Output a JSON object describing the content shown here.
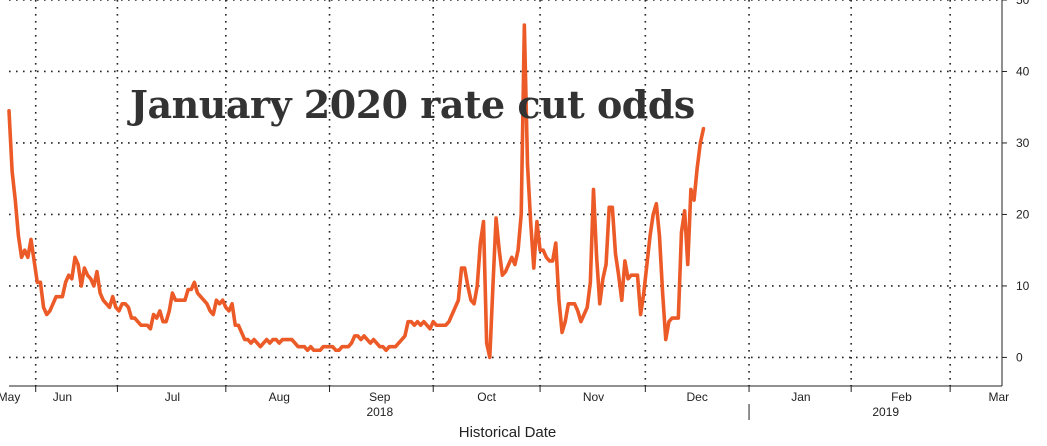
{
  "chart_data": {
    "type": "line",
    "title": "January 2020 rate cut odds",
    "xlabel": "Historical Date",
    "ylabel": "",
    "ylim": [
      -4,
      50
    ],
    "yticks": [
      0,
      10,
      20,
      30,
      40,
      50
    ],
    "xlim": [
      0,
      316
    ],
    "grid": true,
    "colors": {
      "series": "#ec5a27",
      "grid": "#222222",
      "text": "#222222"
    },
    "month_ticks": [
      {
        "label": "May",
        "x": 0
      },
      {
        "label": "Jun",
        "x": 17
      },
      {
        "label": "Jul",
        "x": 52
      },
      {
        "label": "Aug",
        "x": 86
      },
      {
        "label": "Sep",
        "x": 118
      },
      {
        "label": "Oct",
        "x": 152
      },
      {
        "label": "Nov",
        "x": 186
      },
      {
        "label": "Dec",
        "x": 219
      },
      {
        "label": "Jan",
        "x": 252
      },
      {
        "label": "Feb",
        "x": 284
      },
      {
        "label": "Mar",
        "x": 315
      }
    ],
    "year_labels": [
      {
        "label": "2018",
        "x": 118
      },
      {
        "label": "2019",
        "x": 279
      }
    ],
    "series": [
      {
        "name": "",
        "points": [
          [
            0,
            34.5
          ],
          [
            1,
            26
          ],
          [
            2,
            22
          ],
          [
            3,
            17
          ],
          [
            4,
            14
          ],
          [
            5,
            15
          ],
          [
            6,
            14
          ],
          [
            7,
            16.5
          ],
          [
            8,
            13.5
          ],
          [
            9,
            10.5
          ],
          [
            10,
            10.5
          ],
          [
            11,
            7
          ],
          [
            12,
            6
          ],
          [
            13,
            6.5
          ],
          [
            14,
            7.5
          ],
          [
            15,
            8.5
          ],
          [
            16,
            8.5
          ],
          [
            17,
            8.5
          ],
          [
            18,
            10.5
          ],
          [
            19,
            11.5
          ],
          [
            20,
            11
          ],
          [
            21,
            14
          ],
          [
            22,
            13
          ],
          [
            23,
            10
          ],
          [
            24,
            12.5
          ],
          [
            25,
            11.5
          ],
          [
            26,
            11
          ],
          [
            27,
            10
          ],
          [
            28,
            12
          ],
          [
            29,
            9
          ],
          [
            30,
            8
          ],
          [
            31,
            7.5
          ],
          [
            32,
            7
          ],
          [
            33,
            8.5
          ],
          [
            34,
            7
          ],
          [
            35,
            6.5
          ],
          [
            36,
            7.5
          ],
          [
            37,
            7.5
          ],
          [
            38,
            7
          ],
          [
            39,
            5.5
          ],
          [
            40,
            5.5
          ],
          [
            41,
            5
          ],
          [
            42,
            4.5
          ],
          [
            43,
            4.5
          ],
          [
            44,
            4.5
          ],
          [
            45,
            4
          ],
          [
            46,
            6
          ],
          [
            47,
            5.5
          ],
          [
            48,
            6.5
          ],
          [
            49,
            5
          ],
          [
            50,
            5
          ],
          [
            51,
            6.5
          ],
          [
            52,
            9
          ],
          [
            53,
            8
          ],
          [
            54,
            8
          ],
          [
            55,
            8
          ],
          [
            56,
            8
          ],
          [
            57,
            9.5
          ],
          [
            58,
            9.5
          ],
          [
            59,
            10.5
          ],
          [
            60,
            9
          ],
          [
            61,
            8.5
          ],
          [
            62,
            8
          ],
          [
            63,
            7.5
          ],
          [
            64,
            6.5
          ],
          [
            65,
            6
          ],
          [
            66,
            8
          ],
          [
            67,
            7.5
          ],
          [
            68,
            8
          ],
          [
            69,
            7
          ],
          [
            70,
            6.5
          ],
          [
            71,
            7.5
          ],
          [
            72,
            4.5
          ],
          [
            73,
            4.5
          ],
          [
            74,
            3.5
          ],
          [
            75,
            2.5
          ],
          [
            76,
            2.5
          ],
          [
            77,
            2
          ],
          [
            78,
            2.5
          ],
          [
            79,
            2
          ],
          [
            80,
            1.5
          ],
          [
            81,
            2
          ],
          [
            82,
            2.5
          ],
          [
            83,
            2
          ],
          [
            84,
            2.5
          ],
          [
            85,
            2.5
          ],
          [
            86,
            2
          ],
          [
            87,
            2.5
          ],
          [
            88,
            2.5
          ],
          [
            89,
            2.5
          ],
          [
            90,
            2.5
          ],
          [
            91,
            2
          ],
          [
            92,
            1.5
          ],
          [
            93,
            1.5
          ],
          [
            94,
            1.5
          ],
          [
            95,
            1
          ],
          [
            96,
            1.5
          ],
          [
            97,
            1
          ],
          [
            98,
            1
          ],
          [
            99,
            1
          ],
          [
            100,
            1.5
          ],
          [
            101,
            1.5
          ],
          [
            102,
            1.5
          ],
          [
            103,
            1.5
          ],
          [
            104,
            1
          ],
          [
            105,
            1
          ],
          [
            106,
            1.5
          ],
          [
            107,
            1.5
          ],
          [
            108,
            1.5
          ],
          [
            109,
            2
          ],
          [
            110,
            3
          ],
          [
            111,
            3
          ],
          [
            112,
            2.5
          ],
          [
            113,
            3
          ],
          [
            114,
            2.5
          ],
          [
            115,
            2
          ],
          [
            116,
            2.5
          ],
          [
            117,
            2
          ],
          [
            118,
            1.5
          ],
          [
            119,
            1.5
          ],
          [
            120,
            1
          ],
          [
            121,
            1.5
          ],
          [
            122,
            1.5
          ],
          [
            123,
            1.5
          ],
          [
            124,
            2
          ],
          [
            125,
            2.5
          ],
          [
            126,
            3
          ],
          [
            127,
            5
          ],
          [
            128,
            5
          ],
          [
            129,
            4.5
          ],
          [
            130,
            5
          ],
          [
            131,
            4.5
          ],
          [
            132,
            5
          ],
          [
            133,
            4.5
          ],
          [
            134,
            4
          ],
          [
            135,
            5
          ],
          [
            136,
            4.5
          ],
          [
            137,
            4.5
          ],
          [
            138,
            4.5
          ],
          [
            139,
            4.5
          ],
          [
            140,
            5
          ],
          [
            141,
            6
          ],
          [
            142,
            7
          ],
          [
            143,
            8
          ],
          [
            144,
            12.5
          ],
          [
            145,
            12.5
          ],
          [
            146,
            10
          ],
          [
            147,
            8
          ],
          [
            148,
            7.5
          ],
          [
            149,
            10
          ],
          [
            150,
            16
          ],
          [
            151,
            19
          ],
          [
            152,
            2
          ],
          [
            153,
            0
          ],
          [
            154,
            10
          ],
          [
            155,
            19.5
          ],
          [
            156,
            15
          ],
          [
            157,
            11.5
          ],
          [
            158,
            12
          ],
          [
            159,
            13
          ],
          [
            160,
            14
          ],
          [
            161,
            13
          ],
          [
            162,
            15
          ],
          [
            163,
            20
          ],
          [
            164,
            46.5
          ],
          [
            165,
            27
          ],
          [
            166,
            19
          ],
          [
            167,
            12.5
          ],
          [
            168,
            19
          ],
          [
            169,
            15
          ],
          [
            170,
            15
          ],
          [
            171,
            14
          ],
          [
            172,
            13.5
          ],
          [
            173,
            13.5
          ],
          [
            174,
            16
          ],
          [
            175,
            8
          ],
          [
            176,
            3.5
          ],
          [
            177,
            5
          ],
          [
            178,
            7.5
          ],
          [
            179,
            7.5
          ],
          [
            180,
            7.5
          ],
          [
            181,
            6.5
          ],
          [
            182,
            5
          ],
          [
            183,
            6
          ],
          [
            184,
            7
          ],
          [
            185,
            10.5
          ],
          [
            186,
            23.5
          ],
          [
            187,
            14
          ],
          [
            188,
            7.5
          ],
          [
            189,
            11
          ],
          [
            190,
            13
          ],
          [
            191,
            21
          ],
          [
            192,
            21
          ],
          [
            193,
            14.5
          ],
          [
            194,
            11.5
          ],
          [
            195,
            8
          ],
          [
            196,
            13.5
          ],
          [
            197,
            11
          ],
          [
            198,
            11.5
          ],
          [
            199,
            11.5
          ],
          [
            200,
            11.5
          ],
          [
            201,
            6
          ],
          [
            202,
            9
          ],
          [
            203,
            13
          ],
          [
            204,
            17
          ],
          [
            205,
            20
          ],
          [
            206,
            21.5
          ],
          [
            207,
            17
          ],
          [
            208,
            9
          ],
          [
            209,
            2.5
          ],
          [
            210,
            5
          ],
          [
            211,
            5.5
          ],
          [
            212,
            5.5
          ],
          [
            213,
            5.5
          ],
          [
            214,
            17.5
          ],
          [
            215,
            20.5
          ],
          [
            216,
            13
          ],
          [
            217,
            23.5
          ],
          [
            218,
            22
          ],
          [
            219,
            26.5
          ],
          [
            220,
            30
          ],
          [
            221,
            32
          ]
        ]
      }
    ]
  }
}
